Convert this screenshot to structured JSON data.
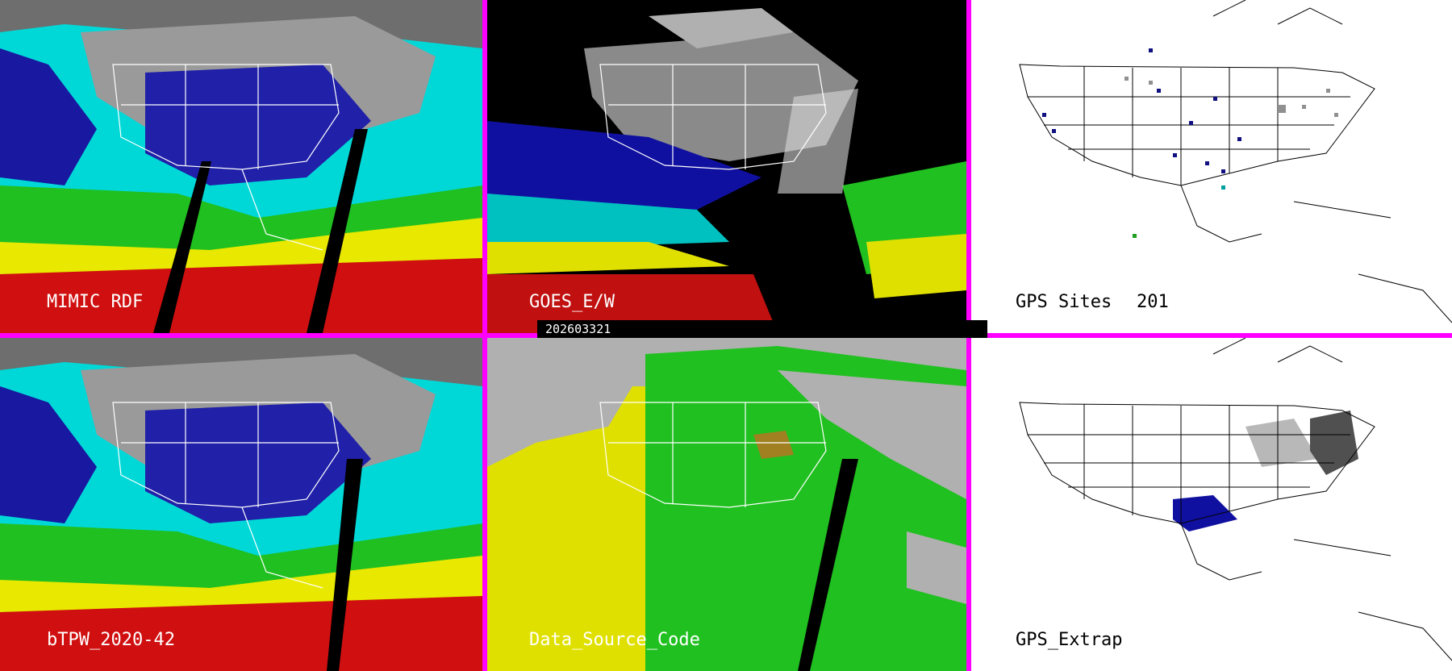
{
  "panels": [
    {
      "id": "mimic",
      "label": "MIMIC RDF"
    },
    {
      "id": "goes",
      "label": "GOES_E/W"
    },
    {
      "id": "gps-sites",
      "label": "GPS Sites",
      "count": "201"
    },
    {
      "id": "btpw",
      "label": "bTPW_2020-42"
    },
    {
      "id": "data-source",
      "label": "Data_Source_Code"
    },
    {
      "id": "gps-extrap",
      "label": "GPS_Extrap"
    }
  ],
  "timestamp": "202603321",
  "colors": {
    "divider": "#ff00ff",
    "cyan": "#00e0e0",
    "blue": "#1010a0",
    "green": "#20c020",
    "yellow": "#e8e800",
    "red": "#d01010",
    "grey": "#b0b0b0"
  }
}
